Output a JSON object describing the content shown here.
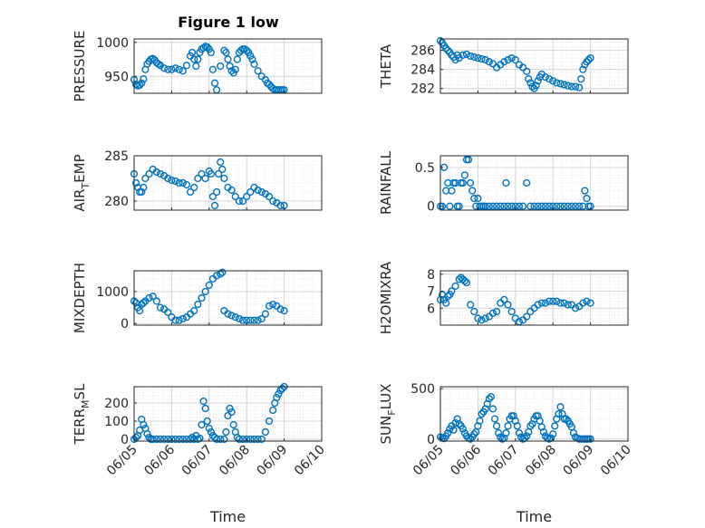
{
  "figure": {
    "title": "Figure 1 low",
    "marker_color": "#0072BD",
    "background": "#ffffff"
  },
  "chart_data": [
    {
      "type": "scatter",
      "id": "pressure",
      "title": "Figure 1 low",
      "ylabel": "PRESSURE",
      "ylim": [
        925,
        1005
      ],
      "yticks": [
        950,
        1000
      ],
      "xlabel": "",
      "xtick_labels": false,
      "x": [
        0,
        0.05,
        0.1,
        0.15,
        0.2,
        0.25,
        0.3,
        0.35,
        0.4,
        0.45,
        0.5,
        0.55,
        0.6,
        0.65,
        0.7,
        0.8,
        0.9,
        1.0,
        1.1,
        1.2,
        1.3,
        1.4,
        1.5,
        1.55,
        1.6,
        1.65,
        1.7,
        1.75,
        1.8,
        1.85,
        1.9,
        1.95,
        2.0,
        2.05,
        2.1,
        2.15,
        2.2,
        2.3,
        2.4,
        2.45,
        2.5,
        2.55,
        2.6,
        2.65,
        2.7,
        2.75,
        2.8,
        2.85,
        2.9,
        2.95,
        3.0,
        3.05,
        3.1,
        3.15,
        3.2,
        3.3,
        3.4,
        3.5,
        3.55,
        3.6,
        3.65,
        3.7,
        3.75,
        3.8,
        3.85,
        3.9,
        3.95,
        4.0
      ],
      "y": [
        945,
        938,
        936,
        937,
        940,
        946,
        960,
        968,
        972,
        975,
        976,
        974,
        970,
        968,
        966,
        962,
        960,
        960,
        962,
        960,
        958,
        966,
        980,
        985,
        975,
        965,
        975,
        985,
        990,
        992,
        994,
        993,
        990,
        985,
        960,
        940,
        930,
        965,
        988,
        985,
        975,
        965,
        958,
        955,
        960,
        975,
        985,
        988,
        990,
        990,
        988,
        985,
        980,
        975,
        968,
        958,
        950,
        945,
        940,
        938,
        935,
        932,
        930,
        930,
        930,
        930,
        930,
        930
      ]
    },
    {
      "type": "scatter",
      "id": "theta",
      "ylabel": "THETA",
      "ylim": [
        281.5,
        287.2
      ],
      "yticks": [
        282,
        284,
        286
      ],
      "xlabel": "",
      "xtick_labels": false,
      "x": [
        0,
        0.05,
        0.1,
        0.15,
        0.2,
        0.25,
        0.3,
        0.35,
        0.4,
        0.45,
        0.5,
        0.6,
        0.7,
        0.8,
        0.9,
        1.0,
        1.1,
        1.2,
        1.3,
        1.4,
        1.5,
        1.6,
        1.7,
        1.8,
        1.9,
        2.0,
        2.1,
        2.2,
        2.3,
        2.35,
        2.4,
        2.45,
        2.5,
        2.55,
        2.6,
        2.65,
        2.7,
        2.8,
        2.9,
        3.0,
        3.1,
        3.2,
        3.3,
        3.4,
        3.5,
        3.6,
        3.7,
        3.75,
        3.8,
        3.85,
        3.9,
        3.95,
        4.0
      ],
      "y": [
        287,
        286.8,
        286.5,
        286.2,
        286,
        285.8,
        285.5,
        285.3,
        285,
        285.5,
        285.2,
        285.5,
        285.6,
        285.4,
        285.3,
        285.2,
        285.1,
        285,
        284.8,
        284.6,
        284.2,
        284.5,
        284.8,
        285,
        285.2,
        285,
        284.5,
        284.2,
        283.8,
        283,
        282.6,
        282.2,
        282,
        282.3,
        282.8,
        283.2,
        283.5,
        283.2,
        283,
        282.8,
        282.6,
        282.5,
        282.4,
        282.3,
        282.2,
        282.2,
        282.1,
        283,
        284,
        284.5,
        284.8,
        285,
        285.2
      ]
    },
    {
      "type": "scatter",
      "id": "air_temp",
      "ylabel": "AIR",
      "ylabel_sub": "T",
      "ylabel_after": "EMP",
      "ylim": [
        279,
        285
      ],
      "yticks": [
        280,
        285
      ],
      "xlabel": "",
      "xtick_labels": false,
      "x": [
        0,
        0.05,
        0.1,
        0.15,
        0.2,
        0.25,
        0.3,
        0.4,
        0.5,
        0.6,
        0.7,
        0.8,
        0.9,
        1.0,
        1.1,
        1.2,
        1.3,
        1.4,
        1.5,
        1.6,
        1.7,
        1.8,
        1.9,
        2.0,
        2.05,
        2.1,
        2.15,
        2.2,
        2.25,
        2.3,
        2.35,
        2.4,
        2.5,
        2.6,
        2.7,
        2.8,
        2.9,
        3.0,
        3.1,
        3.2,
        3.3,
        3.4,
        3.5,
        3.6,
        3.7,
        3.8,
        3.9,
        4.0
      ],
      "y": [
        283,
        282,
        281.5,
        281,
        281,
        281.5,
        282.5,
        283,
        283.5,
        283.2,
        283,
        282.8,
        282.5,
        282.3,
        282.2,
        282,
        282,
        281.8,
        281,
        281.5,
        282.5,
        283,
        282.5,
        283.3,
        283,
        280.5,
        279.5,
        281,
        283,
        284.3,
        283.5,
        282.5,
        281.5,
        281.2,
        280.5,
        280,
        280,
        280.5,
        281,
        281.5,
        281.2,
        281,
        280.8,
        280.5,
        280,
        279.8,
        279.5,
        279.5
      ]
    },
    {
      "type": "scatter",
      "id": "rainfall",
      "ylabel": "RAINFALL",
      "ylim": [
        -0.05,
        0.65
      ],
      "yticks": [
        0,
        0.5
      ],
      "xlabel": "",
      "xtick_labels": false,
      "x": [
        0,
        0.05,
        0.1,
        0.15,
        0.2,
        0.25,
        0.3,
        0.35,
        0.4,
        0.45,
        0.5,
        0.55,
        0.6,
        0.65,
        0.7,
        0.75,
        0.8,
        0.85,
        0.9,
        0.95,
        1.0,
        1.05,
        1.1,
        1.15,
        1.2,
        1.3,
        1.4,
        1.5,
        1.6,
        1.7,
        1.75,
        1.8,
        1.9,
        2.0,
        2.1,
        2.2,
        2.3,
        2.4,
        2.5,
        2.6,
        2.7,
        2.8,
        2.9,
        3.0,
        3.1,
        3.2,
        3.3,
        3.4,
        3.5,
        3.6,
        3.7,
        3.8,
        3.85,
        3.9,
        3.95,
        4.0
      ],
      "y": [
        0,
        0,
        0.5,
        0.2,
        0.3,
        0,
        0.2,
        0.3,
        0.3,
        0,
        0,
        0.3,
        0.3,
        0.4,
        0.6,
        0.6,
        0.3,
        0.2,
        0.1,
        0,
        0.1,
        0,
        0,
        0,
        0,
        0,
        0,
        0,
        0,
        0,
        0.3,
        0,
        0,
        0,
        0,
        0,
        0.3,
        0,
        0,
        0,
        0,
        0,
        0,
        0,
        0,
        0,
        0,
        0,
        0,
        0,
        0,
        0,
        0.2,
        0.1,
        0,
        0
      ]
    },
    {
      "type": "scatter",
      "id": "mixdepth",
      "ylabel": "MIXDEPTH",
      "ylim": [
        -50,
        1650
      ],
      "yticks": [
        0,
        1000
      ],
      "xlabel": "",
      "xtick_labels": false,
      "x": [
        0,
        0.05,
        0.1,
        0.15,
        0.2,
        0.25,
        0.3,
        0.4,
        0.5,
        0.6,
        0.7,
        0.8,
        0.9,
        1.0,
        1.1,
        1.2,
        1.3,
        1.4,
        1.5,
        1.6,
        1.7,
        1.8,
        1.9,
        2.0,
        2.1,
        2.2,
        2.3,
        2.35,
        2.4,
        2.5,
        2.6,
        2.7,
        2.8,
        2.9,
        3.0,
        3.1,
        3.2,
        3.3,
        3.4,
        3.5,
        3.6,
        3.7,
        3.8,
        3.9,
        4.0
      ],
      "y": [
        700,
        650,
        500,
        400,
        600,
        650,
        700,
        800,
        850,
        700,
        500,
        450,
        350,
        200,
        100,
        100,
        150,
        200,
        300,
        400,
        600,
        800,
        1000,
        1200,
        1400,
        1500,
        1550,
        1600,
        400,
        300,
        250,
        200,
        150,
        100,
        100,
        100,
        100,
        100,
        150,
        300,
        550,
        600,
        550,
        450,
        400
      ]
    },
    {
      "type": "scatter",
      "id": "h2omixra",
      "ylabel": "H2OMIXRA",
      "ylim": [
        5,
        8.2
      ],
      "yticks": [
        6,
        7,
        8
      ],
      "xlabel": "",
      "xtick_labels": false,
      "x": [
        0,
        0.05,
        0.1,
        0.15,
        0.2,
        0.25,
        0.3,
        0.4,
        0.5,
        0.55,
        0.6,
        0.65,
        0.7,
        0.8,
        0.9,
        1.0,
        1.1,
        1.2,
        1.3,
        1.4,
        1.5,
        1.6,
        1.7,
        1.8,
        1.9,
        2.0,
        2.1,
        2.2,
        2.3,
        2.4,
        2.5,
        2.6,
        2.7,
        2.8,
        2.9,
        3.0,
        3.1,
        3.2,
        3.3,
        3.4,
        3.5,
        3.6,
        3.7,
        3.8,
        3.9,
        4.0
      ],
      "y": [
        6.5,
        6.8,
        6.5,
        6.3,
        6.7,
        6.8,
        7,
        7.3,
        7.7,
        7.8,
        7.7,
        7.6,
        7.5,
        6.2,
        5.8,
        5.4,
        5.3,
        5.4,
        5.5,
        5.7,
        5.8,
        6.3,
        6.5,
        6.2,
        5.8,
        5.4,
        5.2,
        5.3,
        5.5,
        5.8,
        6.0,
        6.2,
        6.3,
        6.3,
        6.4,
        6.4,
        6.4,
        6.3,
        6.3,
        6.2,
        6.2,
        6.0,
        6.1,
        6.3,
        6.4,
        6.3
      ]
    },
    {
      "type": "scatter",
      "id": "terr_msl",
      "ylabel": "TERR",
      "ylabel_sub": "M",
      "ylabel_after": "SL",
      "ylim": [
        -10,
        290
      ],
      "yticks": [
        0,
        100,
        200
      ],
      "xlabel": "Time",
      "x": [
        0,
        0.05,
        0.1,
        0.15,
        0.2,
        0.25,
        0.3,
        0.35,
        0.4,
        0.45,
        0.5,
        0.6,
        0.7,
        0.8,
        0.9,
        1.0,
        1.1,
        1.2,
        1.3,
        1.4,
        1.5,
        1.55,
        1.6,
        1.65,
        1.7,
        1.75,
        1.8,
        1.85,
        1.9,
        1.95,
        2.0,
        2.05,
        2.1,
        2.15,
        2.2,
        2.3,
        2.4,
        2.45,
        2.5,
        2.55,
        2.6,
        2.65,
        2.7,
        2.75,
        2.8,
        2.9,
        3.0,
        3.1,
        3.2,
        3.3,
        3.4,
        3.5,
        3.6,
        3.7,
        3.75,
        3.8,
        3.85,
        3.9,
        3.95,
        4.0
      ],
      "y": [
        0,
        10,
        20,
        50,
        110,
        80,
        60,
        30,
        10,
        0,
        0,
        0,
        0,
        0,
        0,
        0,
        0,
        0,
        0,
        0,
        0,
        10,
        0,
        20,
        0,
        5,
        80,
        210,
        170,
        100,
        60,
        40,
        20,
        10,
        0,
        0,
        0,
        40,
        130,
        170,
        150,
        80,
        40,
        10,
        0,
        0,
        0,
        0,
        0,
        0,
        0,
        40,
        100,
        160,
        200,
        230,
        250,
        270,
        280,
        290
      ]
    },
    {
      "type": "scatter",
      "id": "sun_flux",
      "ylabel": "SUN",
      "ylabel_sub": "F",
      "ylabel_after": "LUX",
      "ylim": [
        -20,
        520
      ],
      "yticks": [
        0,
        500
      ],
      "xlabel": "Time",
      "x": [
        0,
        0.05,
        0.1,
        0.15,
        0.2,
        0.25,
        0.3,
        0.35,
        0.4,
        0.45,
        0.5,
        0.55,
        0.6,
        0.65,
        0.7,
        0.75,
        0.8,
        0.85,
        0.9,
        0.95,
        1.0,
        1.05,
        1.1,
        1.15,
        1.2,
        1.25,
        1.3,
        1.35,
        1.4,
        1.45,
        1.5,
        1.55,
        1.6,
        1.65,
        1.7,
        1.75,
        1.8,
        1.85,
        1.9,
        1.95,
        2.0,
        2.05,
        2.1,
        2.15,
        2.2,
        2.25,
        2.3,
        2.35,
        2.4,
        2.45,
        2.5,
        2.55,
        2.6,
        2.65,
        2.7,
        2.75,
        2.8,
        2.85,
        2.9,
        2.95,
        3.0,
        3.05,
        3.1,
        3.15,
        3.2,
        3.25,
        3.3,
        3.35,
        3.4,
        3.45,
        3.5,
        3.55,
        3.6,
        3.65,
        3.7,
        3.75,
        3.8,
        3.85,
        3.9,
        3.95,
        4.0
      ],
      "y": [
        20,
        10,
        5,
        30,
        60,
        100,
        130,
        90,
        160,
        200,
        150,
        130,
        100,
        60,
        30,
        10,
        0,
        20,
        50,
        70,
        130,
        180,
        250,
        270,
        300,
        350,
        400,
        420,
        300,
        200,
        130,
        60,
        20,
        0,
        10,
        60,
        130,
        200,
        230,
        230,
        180,
        130,
        60,
        20,
        0,
        10,
        30,
        70,
        130,
        150,
        200,
        230,
        230,
        180,
        120,
        70,
        30,
        10,
        0,
        10,
        50,
        130,
        200,
        250,
        320,
        250,
        200,
        200,
        180,
        150,
        120,
        60,
        20,
        10,
        0,
        0,
        0,
        0,
        0,
        0,
        0
      ]
    }
  ],
  "x_axis": {
    "tick_labels": [
      "06/05",
      "06/06",
      "06/07",
      "06/08",
      "06/09",
      "06/10"
    ],
    "range": [
      0,
      5
    ]
  }
}
